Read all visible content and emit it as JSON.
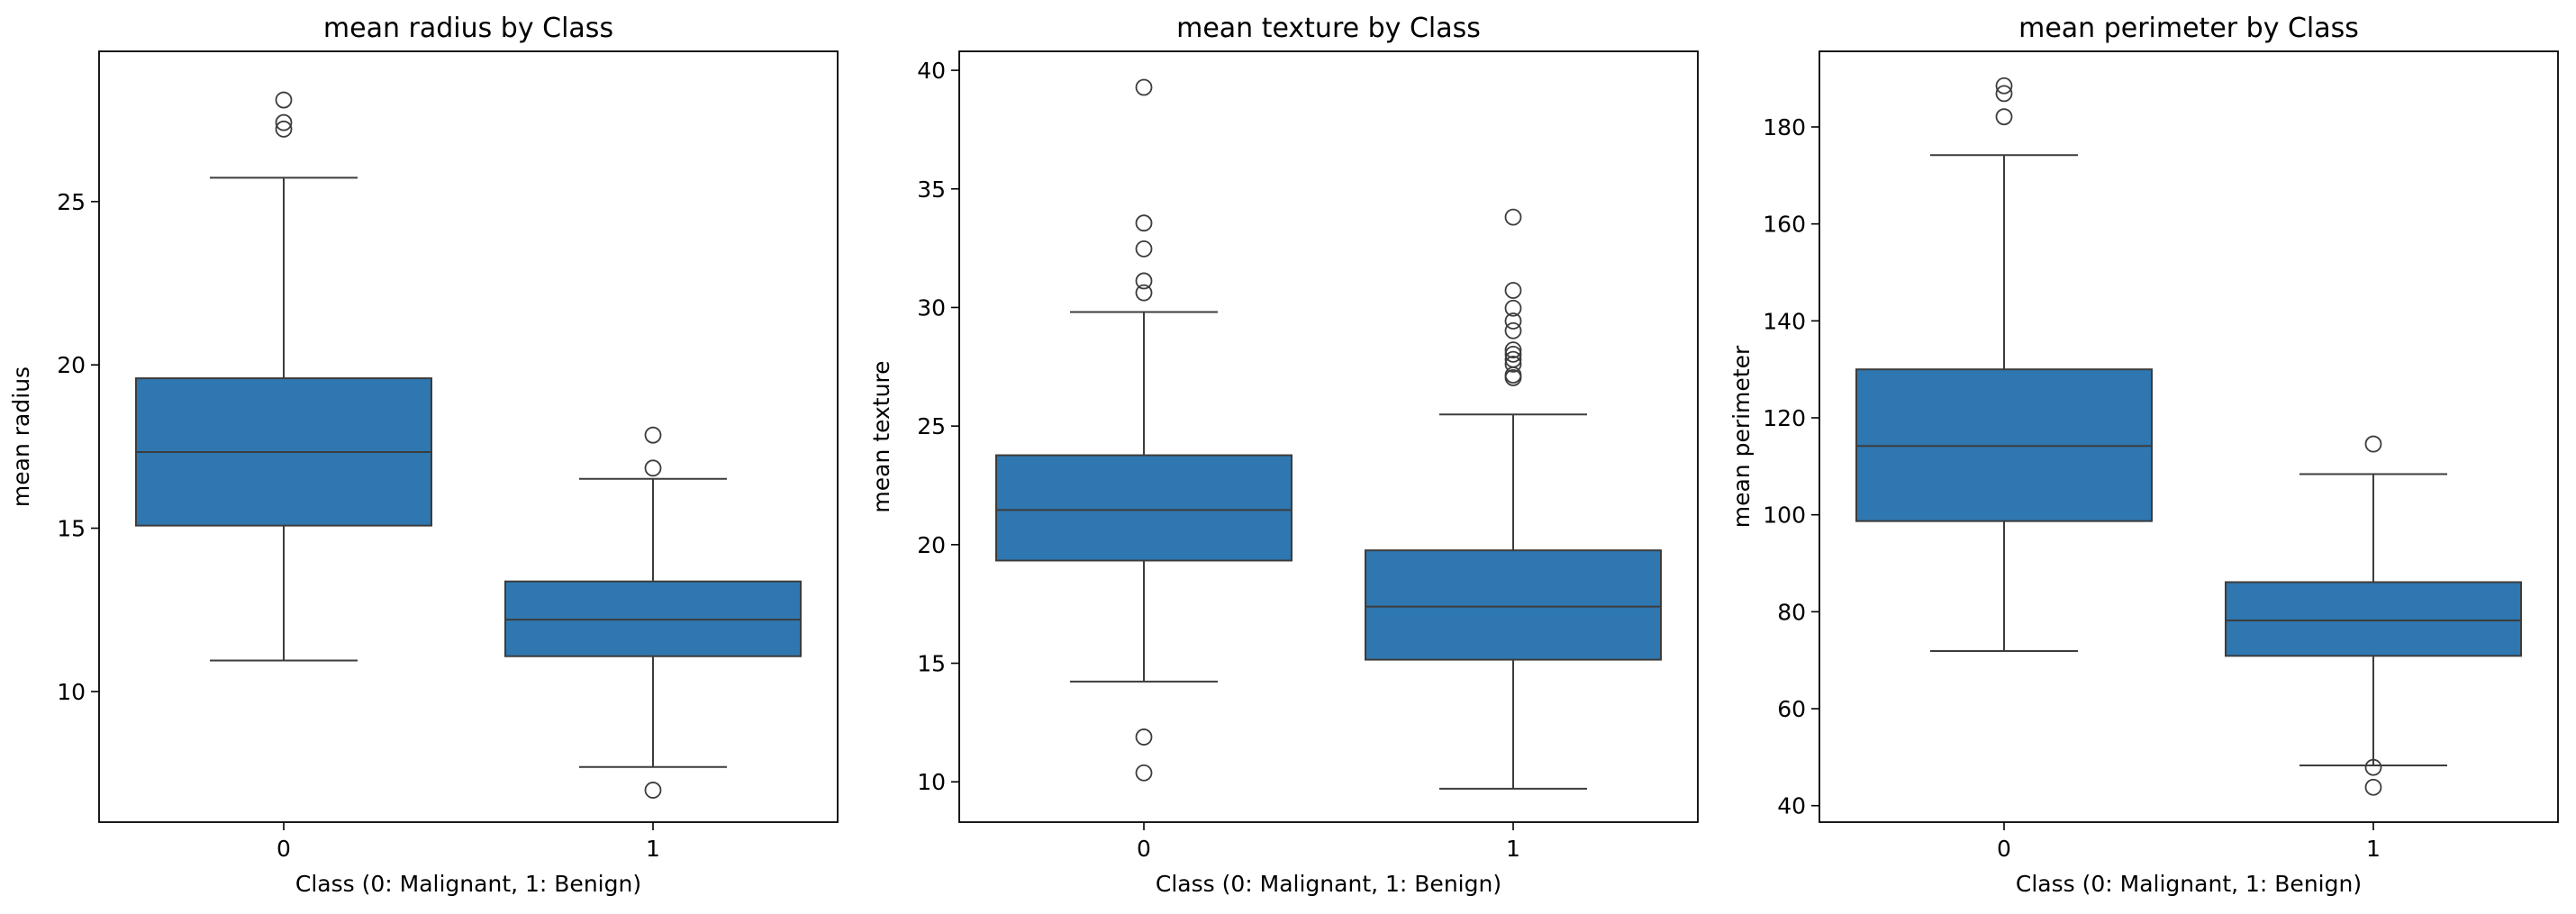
{
  "chart_data": [
    {
      "type": "box",
      "title": "mean radius by Class",
      "xlabel": "Class (0: Malignant, 1: Benign)",
      "ylabel": "mean radius",
      "ylim": [
        6.0,
        29.6
      ],
      "yticks": [
        10,
        15,
        20,
        25
      ],
      "categories": [
        "0",
        "1"
      ],
      "boxes": [
        {
          "category": "0",
          "whisker_low": 10.95,
          "q1": 15.08,
          "median": 17.33,
          "q3": 19.59,
          "whisker_high": 25.73,
          "outliers": [
            27.22,
            27.42,
            28.11
          ]
        },
        {
          "category": "1",
          "whisker_low": 7.69,
          "q1": 11.08,
          "median": 12.2,
          "q3": 13.37,
          "whisker_high": 16.51,
          "outliers": [
            6.98,
            16.84,
            17.85
          ]
        }
      ],
      "box_color": "#2f77b0"
    },
    {
      "type": "box",
      "title": "mean texture by Class",
      "xlabel": "Class (0: Malignant, 1: Benign)",
      "ylabel": "mean texture",
      "ylim": [
        8.3,
        40.8
      ],
      "yticks": [
        10,
        15,
        20,
        25,
        30,
        35,
        40
      ],
      "categories": [
        "0",
        "1"
      ],
      "boxes": [
        {
          "category": "0",
          "whisker_low": 14.23,
          "q1": 19.33,
          "median": 21.46,
          "q3": 23.77,
          "whisker_high": 29.81,
          "outliers": [
            10.38,
            11.89,
            30.62,
            31.12,
            32.47,
            33.56,
            39.28
          ]
        },
        {
          "category": "1",
          "whisker_low": 9.71,
          "q1": 15.15,
          "median": 17.39,
          "q3": 19.76,
          "whisker_high": 25.49,
          "outliers": [
            27.04,
            27.15,
            27.61,
            27.81,
            28.03,
            28.21,
            29.02,
            29.43,
            29.97,
            30.72,
            33.81
          ]
        }
      ],
      "box_color": "#2f77b0"
    },
    {
      "type": "box",
      "title": "mean perimeter by Class",
      "xlabel": "Class (0: Malignant, 1: Benign)",
      "ylabel": "mean perimeter",
      "ylim": [
        36.6,
        195.6
      ],
      "yticks": [
        40,
        60,
        80,
        100,
        120,
        140,
        160,
        180
      ],
      "categories": [
        "0",
        "1"
      ],
      "boxes": [
        {
          "category": "0",
          "whisker_low": 71.9,
          "q1": 98.7,
          "median": 114.2,
          "q3": 130.0,
          "whisker_high": 174.2,
          "outliers": [
            182.1,
            186.9,
            188.5
          ]
        },
        {
          "category": "1",
          "whisker_low": 48.3,
          "q1": 70.9,
          "median": 78.2,
          "q3": 86.1,
          "whisker_high": 108.4,
          "outliers": [
            43.8,
            47.9,
            114.6
          ]
        }
      ],
      "box_color": "#2f77b0"
    }
  ]
}
